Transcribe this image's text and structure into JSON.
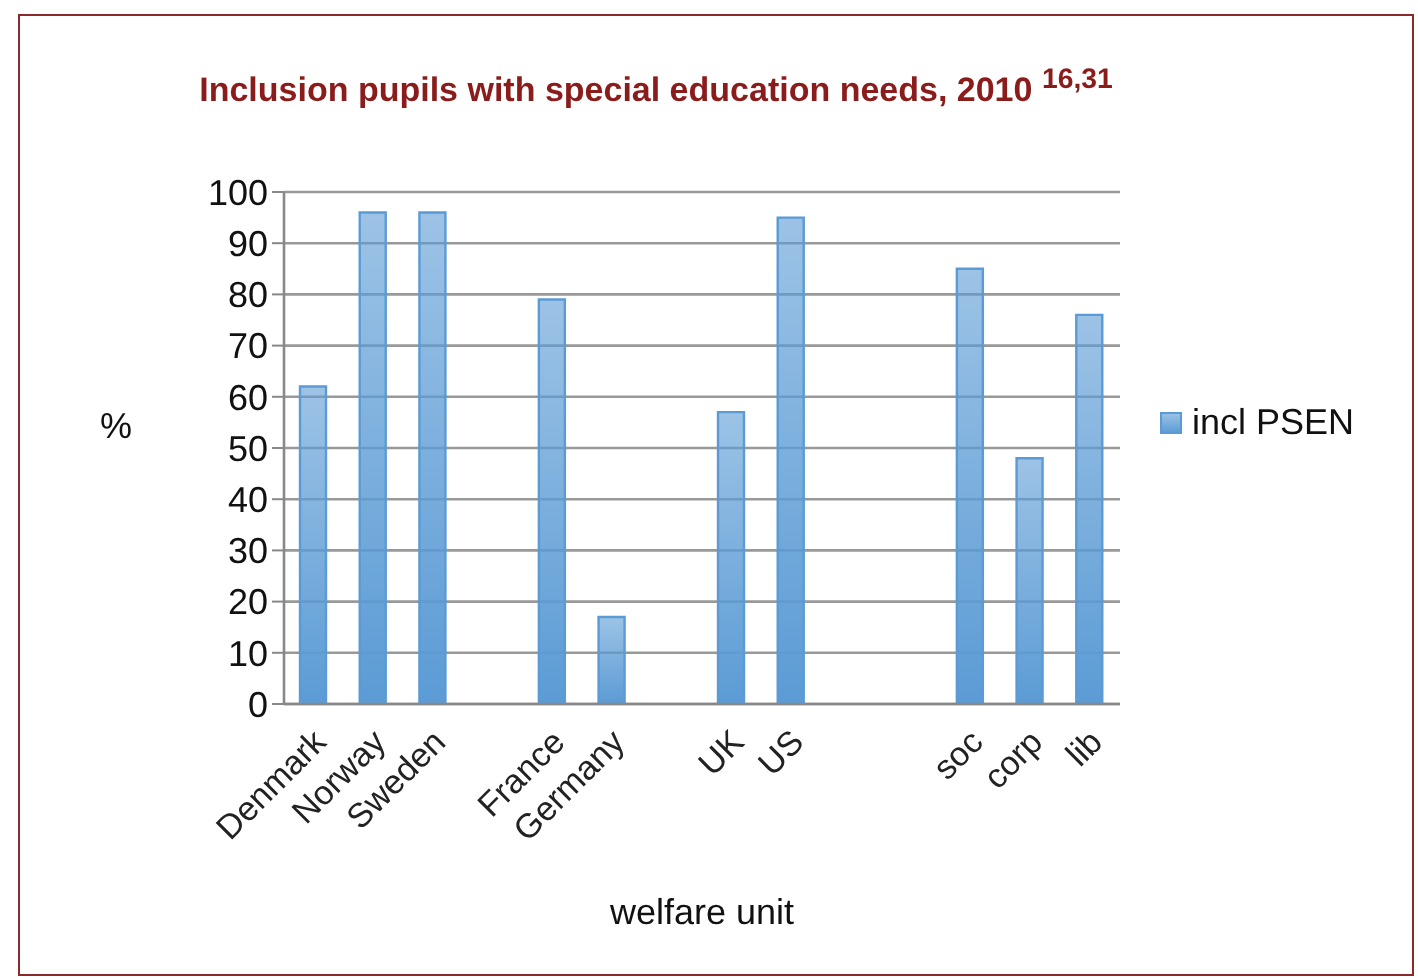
{
  "chart_data": {
    "type": "bar",
    "title": "Inclusion pupils with special education needs, 2010 $^{16,31}$",
    "xlabel": "welfare unit",
    "ylabel": "%",
    "categories": [
      "Denmark",
      "Norway",
      "Sweden",
      null,
      "France",
      "Germany",
      null,
      "UK",
      "US",
      null,
      null,
      "soc",
      "corp",
      "lib"
    ],
    "series": [
      {
        "name": "incl PSEN",
        "color": "#5b9bd5",
        "values": [
          62,
          96,
          96,
          null,
          79,
          17,
          null,
          57,
          95,
          null,
          null,
          85,
          48,
          76
        ]
      }
    ],
    "ylim": [
      0,
      100
    ],
    "yticks": [
      0,
      10,
      20,
      30,
      40,
      50,
      60,
      70,
      80,
      90,
      100
    ],
    "grid": "y",
    "legend": "right"
  }
}
